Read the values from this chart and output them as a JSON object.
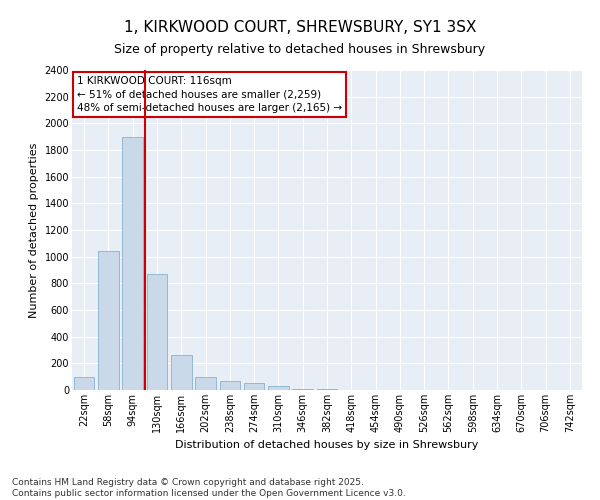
{
  "title_line1": "1, KIRKWOOD COURT, SHREWSBURY, SY1 3SX",
  "title_line2": "Size of property relative to detached houses in Shrewsbury",
  "xlabel": "Distribution of detached houses by size in Shrewsbury",
  "ylabel": "Number of detached properties",
  "bar_color": "#c9d9ea",
  "bar_edge_color": "#7aa8c8",
  "background_color": "#e8eef5",
  "grid_color": "#ffffff",
  "annotation_box_color": "#cc0000",
  "vline_color": "#cc0000",
  "categories": [
    "22sqm",
    "58sqm",
    "94sqm",
    "130sqm",
    "166sqm",
    "202sqm",
    "238sqm",
    "274sqm",
    "310sqm",
    "346sqm",
    "382sqm",
    "418sqm",
    "454sqm",
    "490sqm",
    "526sqm",
    "562sqm",
    "598sqm",
    "634sqm",
    "670sqm",
    "706sqm",
    "742sqm"
  ],
  "values": [
    100,
    1040,
    1900,
    870,
    260,
    100,
    70,
    55,
    30,
    10,
    5,
    0,
    0,
    0,
    0,
    0,
    0,
    0,
    0,
    0,
    0
  ],
  "ylim": [
    0,
    2400
  ],
  "yticks": [
    0,
    200,
    400,
    600,
    800,
    1000,
    1200,
    1400,
    1600,
    1800,
    2000,
    2200,
    2400
  ],
  "vline_x_index": 3,
  "annotation_text": "1 KIRKWOOD COURT: 116sqm\n← 51% of detached houses are smaller (2,259)\n48% of semi-detached houses are larger (2,165) →",
  "footer_line1": "Contains HM Land Registry data © Crown copyright and database right 2025.",
  "footer_line2": "Contains public sector information licensed under the Open Government Licence v3.0.",
  "title_fontsize": 11,
  "subtitle_fontsize": 9,
  "axis_label_fontsize": 8,
  "tick_fontsize": 7,
  "annotation_fontsize": 7.5,
  "footer_fontsize": 6.5
}
